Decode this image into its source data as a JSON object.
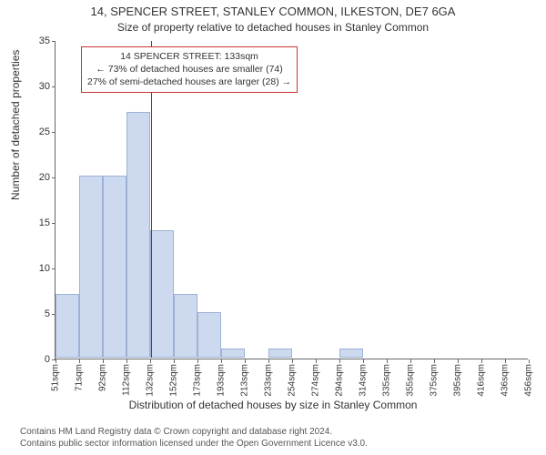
{
  "titles": {
    "line1": "14, SPENCER STREET, STANLEY COMMON, ILKESTON, DE7 6GA",
    "line2": "Size of property relative to detached houses in Stanley Common"
  },
  "axis": {
    "xlabel": "Distribution of detached houses by size in Stanley Common",
    "ylabel": "Number of detached properties"
  },
  "chart": {
    "type": "histogram",
    "ylim": [
      0,
      35
    ],
    "ytick_step": 5,
    "yticks": [
      0,
      5,
      10,
      15,
      20,
      25,
      30,
      35
    ],
    "xticks": [
      "51sqm",
      "71sqm",
      "92sqm",
      "112sqm",
      "132sqm",
      "152sqm",
      "173sqm",
      "193sqm",
      "213sqm",
      "233sqm",
      "254sqm",
      "274sqm",
      "294sqm",
      "314sqm",
      "335sqm",
      "355sqm",
      "375sqm",
      "395sqm",
      "416sqm",
      "436sqm",
      "456sqm"
    ],
    "bar_color": "#cdd9ee",
    "bar_border": "#9db2d6",
    "bar_width_ratio": 1.0,
    "values": [
      7,
      20,
      20,
      27,
      14,
      7,
      5,
      1,
      0,
      1,
      0,
      0,
      1,
      0,
      0,
      0,
      0,
      0,
      0,
      0
    ],
    "background_color": "#ffffff",
    "axis_color": "#666666",
    "grid": false
  },
  "reference": {
    "value_sqm": 133,
    "color": "#aa2222",
    "bin_index_after_tick": 4,
    "fraction_within_bin": 0.05
  },
  "annotation": {
    "border_color": "#cc3333",
    "lines": [
      "14 SPENCER STREET: 133sqm",
      "← 73% of detached houses are smaller (74)",
      "27% of semi-detached houses are larger (28) →"
    ]
  },
  "footer": {
    "line1": "Contains HM Land Registry data © Crown copyright and database right 2024.",
    "line2": "Contains public sector information licensed under the Open Government Licence v3.0."
  },
  "fonts": {
    "title1_size": 13,
    "title2_size": 12,
    "axis_label_size": 12,
    "tick_size": 11,
    "xtick_size": 10,
    "annot_size": 10.5,
    "footer_size": 10
  }
}
